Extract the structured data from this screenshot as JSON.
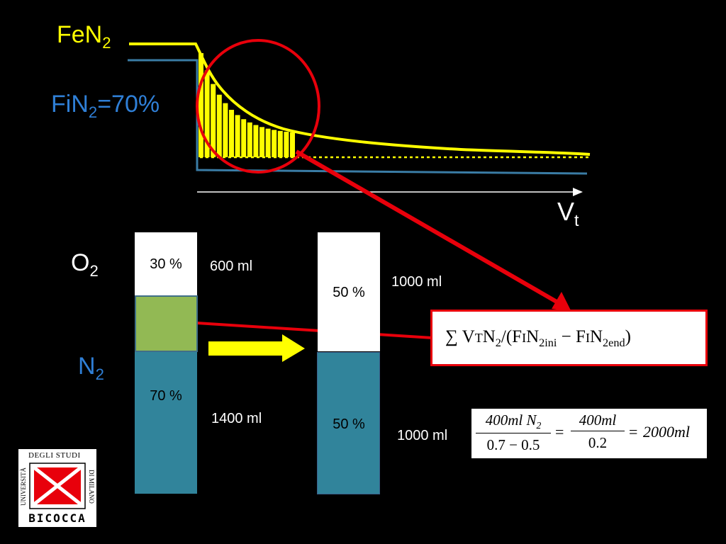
{
  "graph": {
    "fen2_label": "FeN",
    "fen2_sub": "2",
    "fin2_label": "FiN",
    "fin2_sub": "2",
    "fin2_value": "=70%",
    "vt_label": "V",
    "vt_sub": "t"
  },
  "columns": {
    "o2_label": "O",
    "o2_sub": "2",
    "n2_label": "N",
    "n2_sub": "2",
    "left": {
      "top_pct": "30 %",
      "top_ml": "600 ml",
      "bottom_pct": "70 %",
      "bottom_ml": "1400 ml"
    },
    "right": {
      "top_pct": "50 %",
      "top_ml": "1000 ml",
      "bottom_pct": "50 %",
      "bottom_ml": "1000 ml"
    }
  },
  "formula_box": {
    "sum": "∑",
    "vt": "V",
    "vt_sub": "T",
    "n2": "N",
    "n2_sub": "2",
    "slash": "/(",
    "fin1": "F",
    "fin1_small": "I",
    "fin1_n": "N",
    "fin1_sub": "2ini",
    "minus": " − ",
    "fin2": "F",
    "fin2_small": "I",
    "fin2_n": "N",
    "fin2_sub": "2end",
    "close": ")"
  },
  "calc_box": {
    "num1": "400ml N",
    "num1_sub": "2",
    "den1": "0.7 − 0.5",
    "eq1": "=",
    "num2": "400ml",
    "den2": "0.2",
    "eq2": "=",
    "result": "2000ml"
  },
  "logo": {
    "arc_left": "UNIVERSITÀ",
    "arc_top": "DEGLI STUDI",
    "arc_right": "DI MILANO",
    "bottom": "BICOCCA"
  },
  "colors": {
    "yellow": "#ffff00",
    "blue_line": "#3a7ca5",
    "red": "#e8000b",
    "teal": "#31849b",
    "green": "#92b954"
  }
}
